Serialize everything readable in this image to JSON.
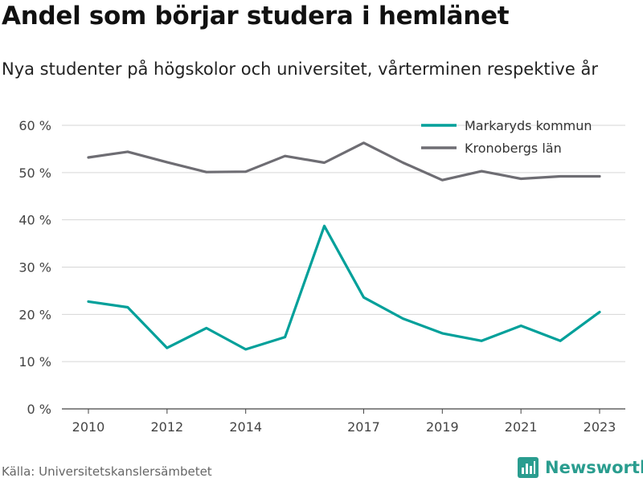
{
  "header": {
    "title": "Andel som börjar studera i hemlänet",
    "subtitle": "Nya studenter på högskolor och universitet, vårterminen respektive år"
  },
  "footer": {
    "source": "Källa: Universitetskanslersämbetet",
    "brand": "Newsworthy",
    "brand_color": "#2a9d8f"
  },
  "chart_data": {
    "type": "line",
    "title": "Andel som börjar studera i hemlänet",
    "subtitle": "Nya studenter på högskolor och universitet, vårterminen respektive år",
    "xlabel": "",
    "ylabel": "",
    "x": [
      2010,
      2011,
      2012,
      2013,
      2014,
      2015,
      2016,
      2017,
      2018,
      2019,
      2020,
      2021,
      2022,
      2023
    ],
    "x_ticks": [
      2010,
      2012,
      2014,
      2017,
      2019,
      2021,
      2023
    ],
    "xlim": [
      2010,
      2023
    ],
    "ylim": [
      0,
      60
    ],
    "y_ticks": [
      0,
      10,
      20,
      30,
      40,
      50,
      60
    ],
    "y_tick_labels": [
      "0 %",
      "10 %",
      "20 %",
      "30 %",
      "40 %",
      "50 %",
      "60 %"
    ],
    "grid": true,
    "legend_position": "top-right",
    "series": [
      {
        "name": "Markaryds kommun",
        "color": "#00a09a",
        "values": [
          22.7,
          21.5,
          12.9,
          17.1,
          12.6,
          15.2,
          38.7,
          23.6,
          19.1,
          16.0,
          14.4,
          17.6,
          14.4,
          20.5
        ]
      },
      {
        "name": "Kronobergs län",
        "color": "#6e6d73",
        "values": [
          53.2,
          54.4,
          52.2,
          50.1,
          50.2,
          53.5,
          52.1,
          56.3,
          52.1,
          48.4,
          50.3,
          48.7,
          49.2,
          49.2
        ]
      }
    ]
  }
}
